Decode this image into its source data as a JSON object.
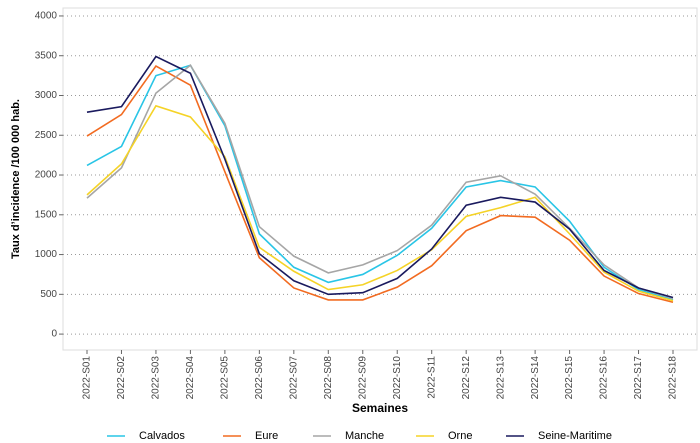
{
  "chart_data": {
    "type": "line",
    "y_label": "Taux d’incidence /100 000 hab.",
    "x_label": "Semaines",
    "categories": [
      "2022-S01",
      "2022-S02",
      "2022-S03",
      "2022-S04",
      "2022-S05",
      "2022-S06",
      "2022-S07",
      "2022-S08",
      "2022-S09",
      "2022-S10",
      "2022-S11",
      "2022-S12",
      "2022-S13",
      "2022-S14",
      "2022-S15",
      "2022-S16",
      "2022-S17",
      "2022-S18"
    ],
    "series": [
      {
        "name": "Calvados",
        "color": "#29c5e6",
        "values": [
          2120,
          2360,
          3250,
          3380,
          2620,
          1260,
          840,
          650,
          750,
          990,
          1330,
          1850,
          1930,
          1850,
          1420,
          840,
          560,
          430
        ]
      },
      {
        "name": "Eure",
        "color": "#f26b21",
        "values": [
          2490,
          2760,
          3370,
          3130,
          2040,
          960,
          580,
          430,
          430,
          590,
          860,
          1300,
          1490,
          1470,
          1180,
          730,
          510,
          400
        ]
      },
      {
        "name": "Manche",
        "color": "#a6a6a6",
        "values": [
          1710,
          2090,
          3030,
          3380,
          2650,
          1350,
          980,
          770,
          870,
          1050,
          1370,
          1910,
          1990,
          1760,
          1330,
          870,
          580,
          450
        ]
      },
      {
        "name": "Orne",
        "color": "#f5d327",
        "values": [
          1750,
          2140,
          2870,
          2730,
          2230,
          1090,
          790,
          560,
          620,
          800,
          1060,
          1480,
          1590,
          1720,
          1260,
          780,
          540,
          420
        ]
      },
      {
        "name": "Seine-Maritime",
        "color": "#1a1a5e",
        "values": [
          2790,
          2860,
          3490,
          3280,
          2200,
          1010,
          670,
          500,
          520,
          700,
          1070,
          1620,
          1720,
          1660,
          1320,
          800,
          580,
          460
        ]
      }
    ],
    "ylim": [
      -200,
      4100
    ],
    "yticks": [
      0,
      500,
      1000,
      1500,
      2000,
      2500,
      3000,
      3500,
      4000
    ],
    "grid": true,
    "legend": "bottom"
  }
}
